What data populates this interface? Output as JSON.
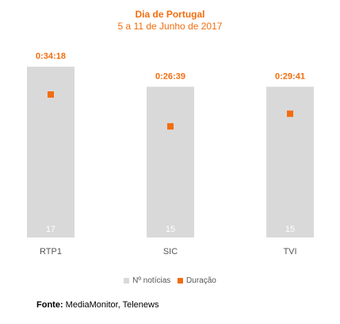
{
  "chart_data": {
    "type": "bar",
    "title": "Dia de Portugal",
    "subtitle": "5 a 11 de Junho de 2017",
    "categories": [
      "RTP1",
      "SIC",
      "TVI"
    ],
    "series": [
      {
        "name": "Nº notícias",
        "values": [
          17,
          15,
          15
        ],
        "color": "#d9d9d9",
        "kind": "bar"
      },
      {
        "name": "Duração",
        "values": [
          "0:34:18",
          "0:26:39",
          "0:29:41"
        ],
        "seconds": [
          2058,
          1599,
          1781
        ],
        "color": "#f26d0f",
        "kind": "marker"
      }
    ],
    "legend_position": "bottom"
  },
  "source": {
    "label": "Fonte:",
    "text": "MediaMonitor, Telenews"
  }
}
